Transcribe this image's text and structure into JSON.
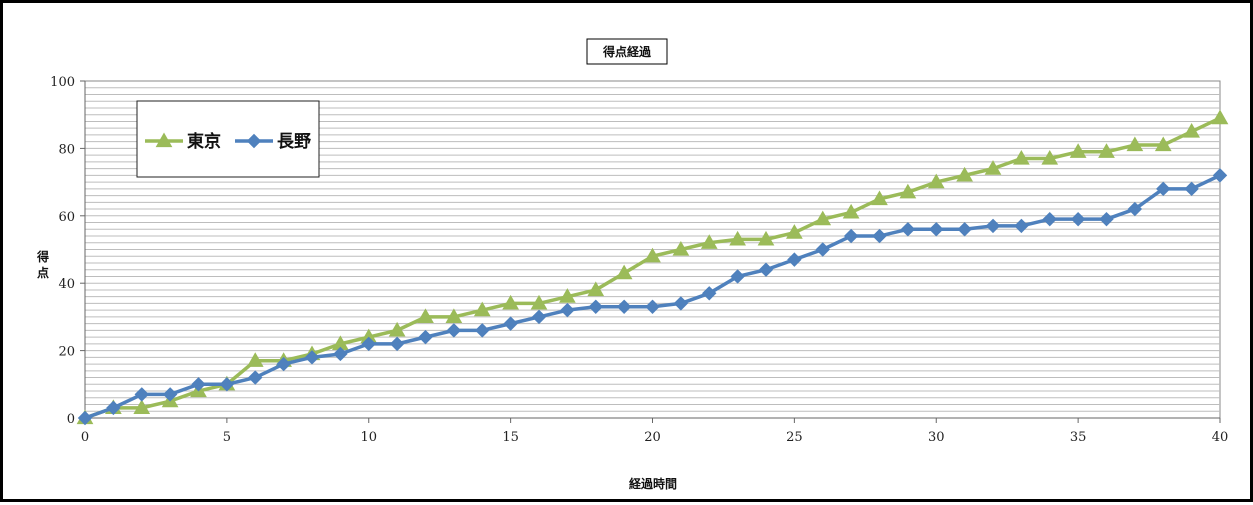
{
  "chart_data": {
    "type": "line",
    "title": "得点経過",
    "xlabel": "経過時間",
    "ylabel": "得点",
    "xlim": [
      0,
      40
    ],
    "ylim": [
      0,
      100
    ],
    "xticks": [
      0,
      5,
      10,
      15,
      20,
      25,
      30,
      35,
      40
    ],
    "yticks": [
      0,
      20,
      40,
      60,
      80,
      100
    ],
    "y_minor_step": 2,
    "grid": true,
    "legend_position": "top-left",
    "series": [
      {
        "name": "東京",
        "color": "#9BBB59",
        "marker": "triangle",
        "x": [
          0,
          1,
          2,
          3,
          4,
          5,
          6,
          7,
          8,
          9,
          10,
          11,
          12,
          13,
          14,
          15,
          16,
          17,
          18,
          19,
          20,
          21,
          22,
          23,
          24,
          25,
          26,
          27,
          28,
          29,
          30,
          31,
          32,
          33,
          34,
          35,
          36,
          37,
          38,
          39,
          40
        ],
        "values": [
          0,
          3,
          3,
          5,
          8,
          10,
          17,
          17,
          19,
          22,
          24,
          26,
          30,
          30,
          32,
          34,
          34,
          36,
          38,
          43,
          48,
          50,
          52,
          53,
          53,
          55,
          59,
          61,
          65,
          67,
          70,
          72,
          74,
          77,
          77,
          79,
          79,
          81,
          81,
          85,
          89
        ]
      },
      {
        "name": "長野",
        "color": "#4F81BD",
        "marker": "diamond",
        "x": [
          0,
          1,
          2,
          3,
          4,
          5,
          6,
          7,
          8,
          9,
          10,
          11,
          12,
          13,
          14,
          15,
          16,
          17,
          18,
          19,
          20,
          21,
          22,
          23,
          24,
          25,
          26,
          27,
          28,
          29,
          30,
          31,
          32,
          33,
          34,
          35,
          36,
          37,
          38,
          39,
          40
        ],
        "values": [
          0,
          3,
          7,
          7,
          10,
          10,
          12,
          16,
          18,
          19,
          22,
          22,
          24,
          26,
          26,
          28,
          30,
          32,
          33,
          33,
          33,
          34,
          37,
          42,
          44,
          47,
          50,
          54,
          54,
          56,
          56,
          56,
          57,
          57,
          59,
          59,
          59,
          62,
          68,
          68,
          72
        ]
      }
    ]
  }
}
